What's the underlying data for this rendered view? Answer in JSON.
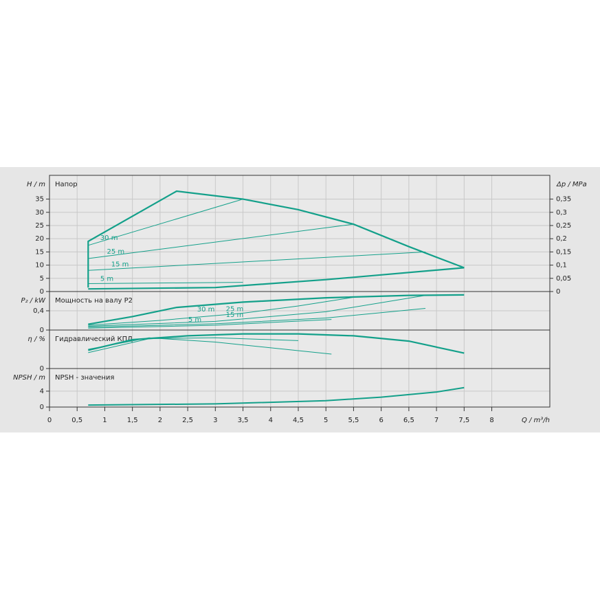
{
  "chart_data": [
    {
      "type": "line",
      "title": "Напор",
      "ylabel": "H / m",
      "y2label": "Δp / MPa",
      "ylim": [
        0,
        44
      ],
      "yticks": [
        0,
        5,
        10,
        15,
        20,
        25,
        30,
        35
      ],
      "y2lim": [
        0,
        0.44
      ],
      "y2ticks": [
        0,
        {
          "value": 0.05,
          "label": "0,05"
        },
        {
          "value": 0.1,
          "label": "0,1"
        },
        {
          "value": 0.15,
          "label": "0,15"
        },
        {
          "value": 0.2,
          "label": "0,2"
        },
        {
          "value": 0.25,
          "label": "0,25"
        },
        {
          "value": 0.3,
          "label": "0,3"
        },
        {
          "value": 0.35,
          "label": "0,35"
        }
      ],
      "series": [
        {
          "color": "#13a08a",
          "width": 2.2,
          "x": [
            0.7,
            0.7,
            2.3,
            3.5,
            4.5,
            5.5,
            6.5,
            7.5
          ],
          "values": [
            1.5,
            19,
            38,
            35,
            31,
            25.5,
            17,
            9
          ]
        },
        {
          "color": "#13a08a",
          "width": 2.2,
          "x": [
            0.7,
            3,
            5,
            7.5
          ],
          "values": [
            1,
            1.5,
            4.5,
            9
          ]
        },
        {
          "name": "30 m",
          "color": "#13a08a",
          "width": 1,
          "x": [
            0.7,
            3.5
          ],
          "values": [
            17.5,
            35
          ]
        },
        {
          "name": "25 m",
          "color": "#13a08a",
          "width": 1,
          "x": [
            0.7,
            5.5
          ],
          "values": [
            12.5,
            25.5
          ]
        },
        {
          "name": "15 m",
          "color": "#13a08a",
          "width": 1,
          "x": [
            0.7,
            6.8
          ],
          "values": [
            8,
            15
          ]
        },
        {
          "name": "5 m",
          "color": "#13a08a",
          "width": 1,
          "x": [
            0.7,
            3.5
          ],
          "values": [
            3,
            3.5
          ]
        }
      ]
    },
    {
      "type": "line",
      "title": "Мощность на валу P2",
      "ylabel": "P₂ / kW",
      "ylim": [
        0,
        0.8
      ],
      "yticks": [
        0,
        {
          "value": 0.4,
          "label": "0,4"
        }
      ],
      "series": [
        {
          "color": "#13a08a",
          "width": 2.2,
          "x": [
            0.7,
            1.5,
            2.3,
            3.5,
            5,
            6.5,
            7.5
          ],
          "values": [
            0.12,
            0.28,
            0.47,
            0.58,
            0.67,
            0.72,
            0.73
          ]
        },
        {
          "name": "30 m",
          "color": "#13a08a",
          "width": 1,
          "x": [
            0.7,
            2,
            3.5,
            4.5,
            5.5
          ],
          "values": [
            0.1,
            0.2,
            0.35,
            0.5,
            0.68
          ]
        },
        {
          "name": "25 m",
          "color": "#13a08a",
          "width": 1,
          "x": [
            0.7,
            3,
            5,
            6.8
          ],
          "values": [
            0.08,
            0.18,
            0.38,
            0.72
          ]
        },
        {
          "name": "15 m",
          "color": "#13a08a",
          "width": 1,
          "x": [
            0.7,
            3,
            5,
            6.8
          ],
          "values": [
            0.06,
            0.13,
            0.25,
            0.45
          ]
        },
        {
          "name": "5 m",
          "color": "#13a08a",
          "width": 1,
          "x": [
            0.7,
            3,
            5.1
          ],
          "values": [
            0.04,
            0.1,
            0.22
          ]
        }
      ]
    },
    {
      "type": "line",
      "title": "Гидравлический КПД",
      "ylabel": "η / %",
      "ylim": [
        0,
        80
      ],
      "yticks": [
        0
      ],
      "series": [
        {
          "color": "#13a08a",
          "width": 2.2,
          "x": [
            0.7,
            1.5,
            2.5,
            3.5,
            4.5,
            5.5,
            6.5,
            7.5
          ],
          "values": [
            38,
            60,
            68,
            72,
            72,
            68,
            57,
            32
          ]
        },
        {
          "color": "#13a08a",
          "width": 1,
          "x": [
            0.7,
            1.8,
            3,
            5.1
          ],
          "values": [
            40,
            64,
            55,
            30
          ]
        },
        {
          "color": "#13a08a",
          "width": 1,
          "x": [
            0.7,
            1.8,
            3,
            4.5
          ],
          "values": [
            33,
            62,
            64,
            58
          ]
        }
      ]
    },
    {
      "type": "line",
      "title": "NPSH - значения",
      "ylabel": "NPSH / m",
      "xlabel": "Q / m³/h",
      "ylim": [
        0,
        9.7
      ],
      "yticks": [
        0,
        4
      ],
      "xlim": [
        0,
        9.05
      ],
      "xticks": [
        0,
        {
          "value": 0.5,
          "label": "0,5"
        },
        1,
        {
          "value": 1.5,
          "label": "1,5"
        },
        2,
        {
          "value": 2.5,
          "label": "2,5"
        },
        3,
        {
          "value": 3.5,
          "label": "3,5"
        },
        4,
        {
          "value": 4.5,
          "label": "4,5"
        },
        5,
        {
          "value": 5.5,
          "label": "5,5"
        },
        6,
        {
          "value": 6.5,
          "label": "6,5"
        },
        7,
        {
          "value": 7.5,
          "label": "7,5"
        },
        8
      ],
      "series": [
        {
          "color": "#13a08a",
          "width": 2,
          "x": [
            0.7,
            3,
            5,
            6,
            7,
            7.5
          ],
          "values": [
            0.5,
            0.8,
            1.6,
            2.5,
            3.8,
            4.9
          ]
        }
      ]
    }
  ]
}
